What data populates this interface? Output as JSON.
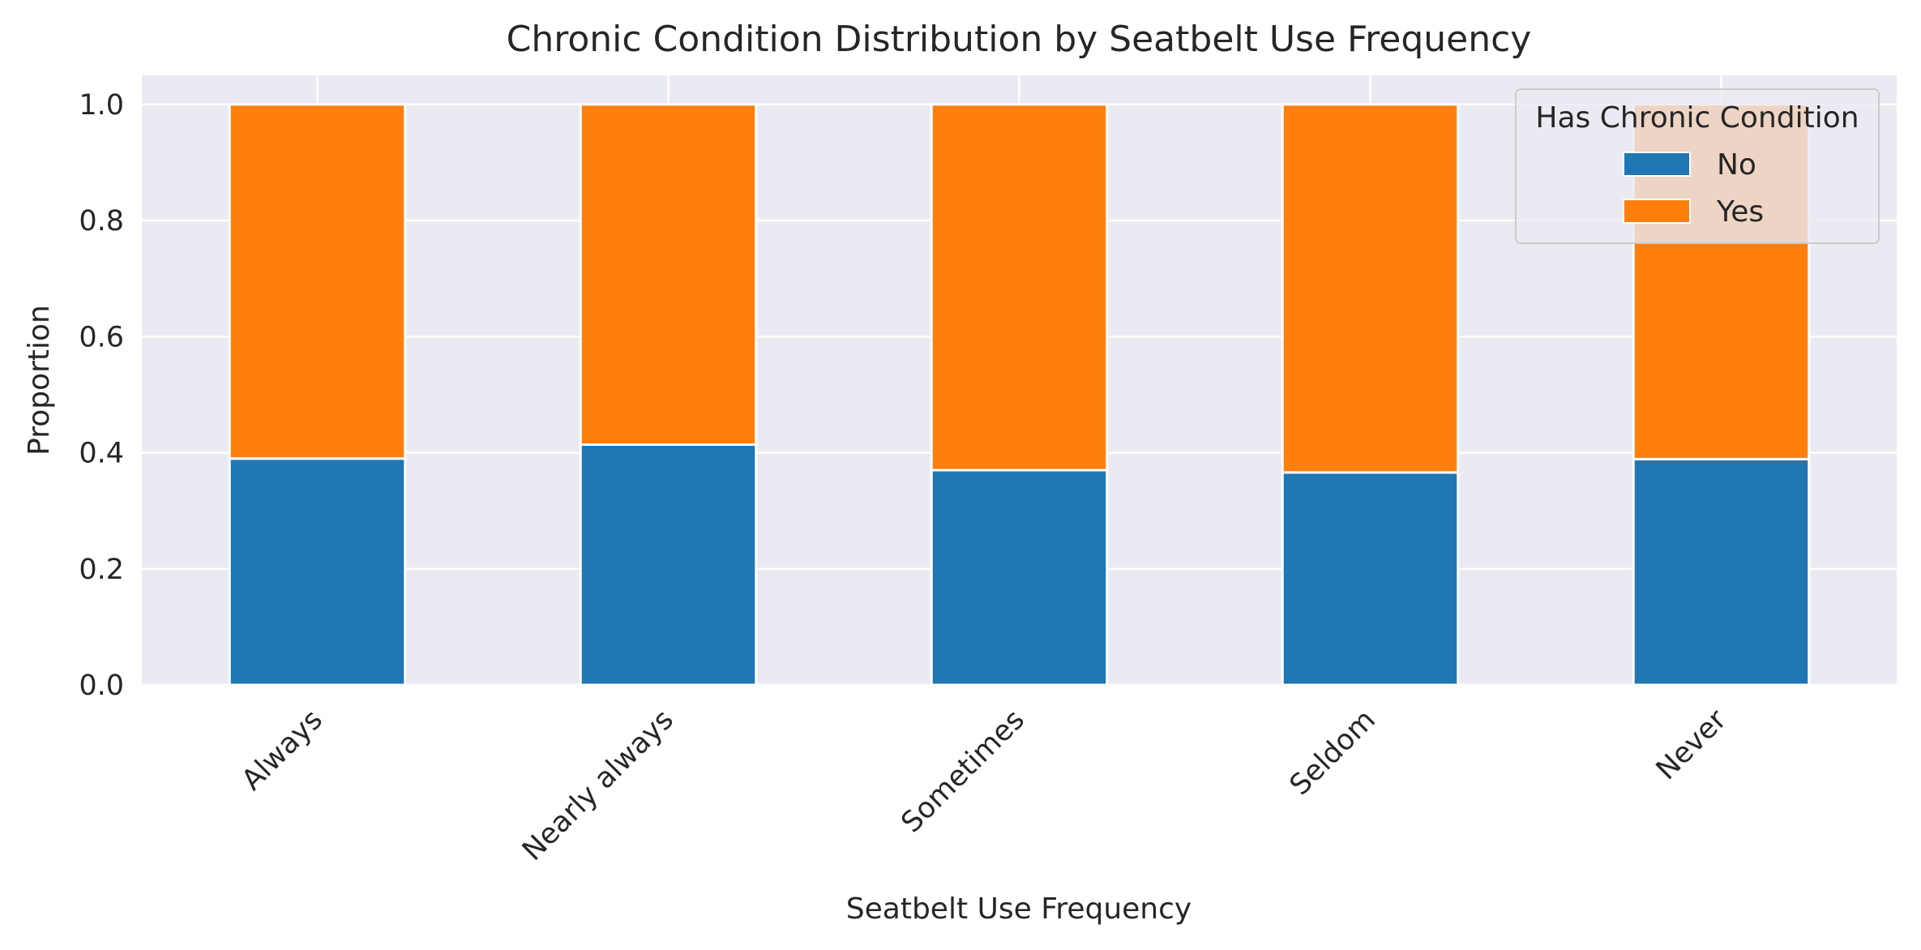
{
  "chart_data": {
    "type": "bar",
    "stacked": true,
    "title": "Chronic Condition Distribution by Seatbelt Use Frequency",
    "xlabel": "Seatbelt Use Frequency",
    "ylabel": "Proportion",
    "ylim": [
      0,
      1.05
    ],
    "yticks": [
      "0.0",
      "0.2",
      "0.4",
      "0.6",
      "0.8",
      "1.0"
    ],
    "categories": [
      "Always",
      "Nearly always",
      "Sometimes",
      "Seldom",
      "Never"
    ],
    "legend_title": "Has Chronic Condition",
    "legend_position": "top-right",
    "grid": true,
    "series": [
      {
        "name": "No",
        "color": "#1f77b4",
        "values": [
          0.39,
          0.414,
          0.37,
          0.366,
          0.389
        ]
      },
      {
        "name": "Yes",
        "color": "#ff7f0e",
        "values": [
          0.61,
          0.586,
          0.63,
          0.634,
          0.611
        ]
      }
    ],
    "background_color": "#eaeaf2"
  }
}
